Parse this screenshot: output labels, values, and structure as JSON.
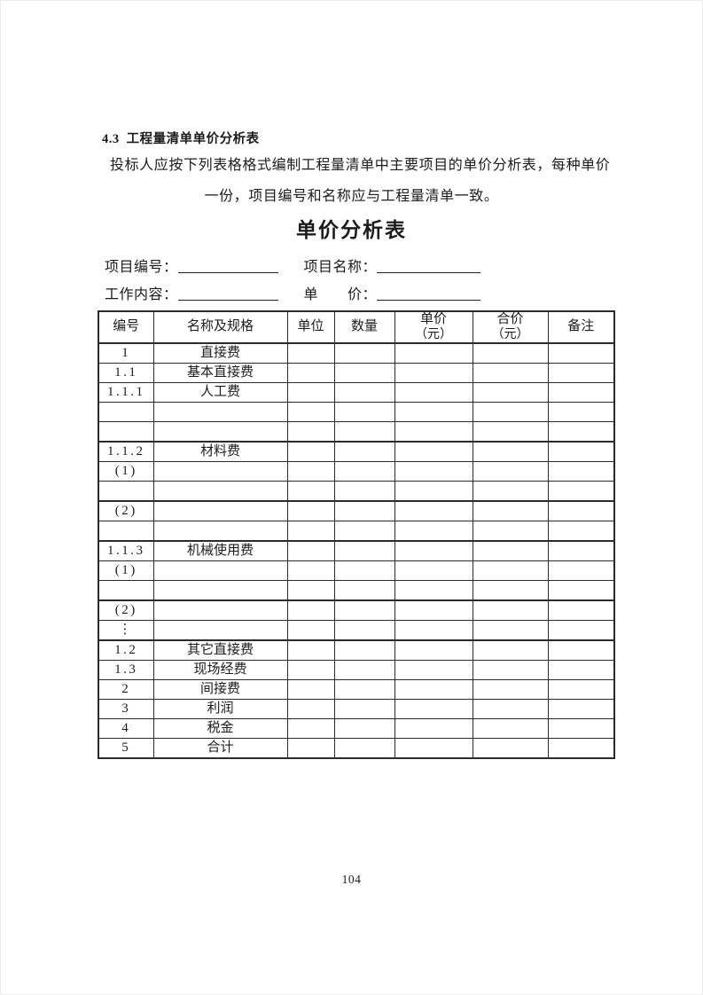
{
  "colors": {
    "page_background": "#ffffff",
    "text": "#1c1c1c",
    "table_border": "#2b2b2b"
  },
  "section": {
    "number": "4.3",
    "heading": "工程量清单单价分析表",
    "intro_line1": "投标人应按下列表格格式编制工程量清单中主要项目的单价分析表，每种单价",
    "intro_line2": "一份，项目编号和名称应与工程量清单一致。"
  },
  "form": {
    "title": "单价分析表",
    "fields": [
      {
        "label": "项目编号：",
        "value": ""
      },
      {
        "label": "项目名称：",
        "value": ""
      },
      {
        "label": "工作内容：",
        "value": ""
      },
      {
        "label": "单　　价：",
        "value": ""
      }
    ]
  },
  "table": {
    "headers": [
      {
        "label": "编号"
      },
      {
        "label": "名称及规格"
      },
      {
        "label": "单位"
      },
      {
        "label": "数量"
      },
      {
        "label": "单价",
        "sub": "（元）"
      },
      {
        "label": "合价",
        "sub": "（元）"
      },
      {
        "label": "备注"
      }
    ],
    "rows": [
      {
        "code": "1",
        "name": "直接费"
      },
      {
        "code": "1.1",
        "name": "基本直接费"
      },
      {
        "code": "1.1.1",
        "name": "人工费"
      },
      {
        "code": "",
        "name": ""
      },
      {
        "code": "",
        "name": ""
      },
      {
        "code": "1.1.2",
        "name": "材料费",
        "thick_top": true
      },
      {
        "code": "(1)",
        "name": ""
      },
      {
        "code": "",
        "name": ""
      },
      {
        "code": "(2)",
        "name": "",
        "thick_top": true
      },
      {
        "code": "",
        "name": ""
      },
      {
        "code": "1.1.3",
        "name": "机械使用费",
        "thick_top": true
      },
      {
        "code": "(1)",
        "name": ""
      },
      {
        "code": "",
        "name": ""
      },
      {
        "code": "(2)",
        "name": "",
        "thick_top": true
      },
      {
        "code": "⋮",
        "name": ""
      },
      {
        "code": "1.2",
        "name": "其它直接费",
        "thick_top": true
      },
      {
        "code": "1.3",
        "name": "现场经费"
      },
      {
        "code": "2",
        "name": "间接费"
      },
      {
        "code": "3",
        "name": "利润"
      },
      {
        "code": "4",
        "name": "税金"
      },
      {
        "code": "5",
        "name": "合计"
      }
    ]
  },
  "footer": {
    "page_number": "104"
  }
}
